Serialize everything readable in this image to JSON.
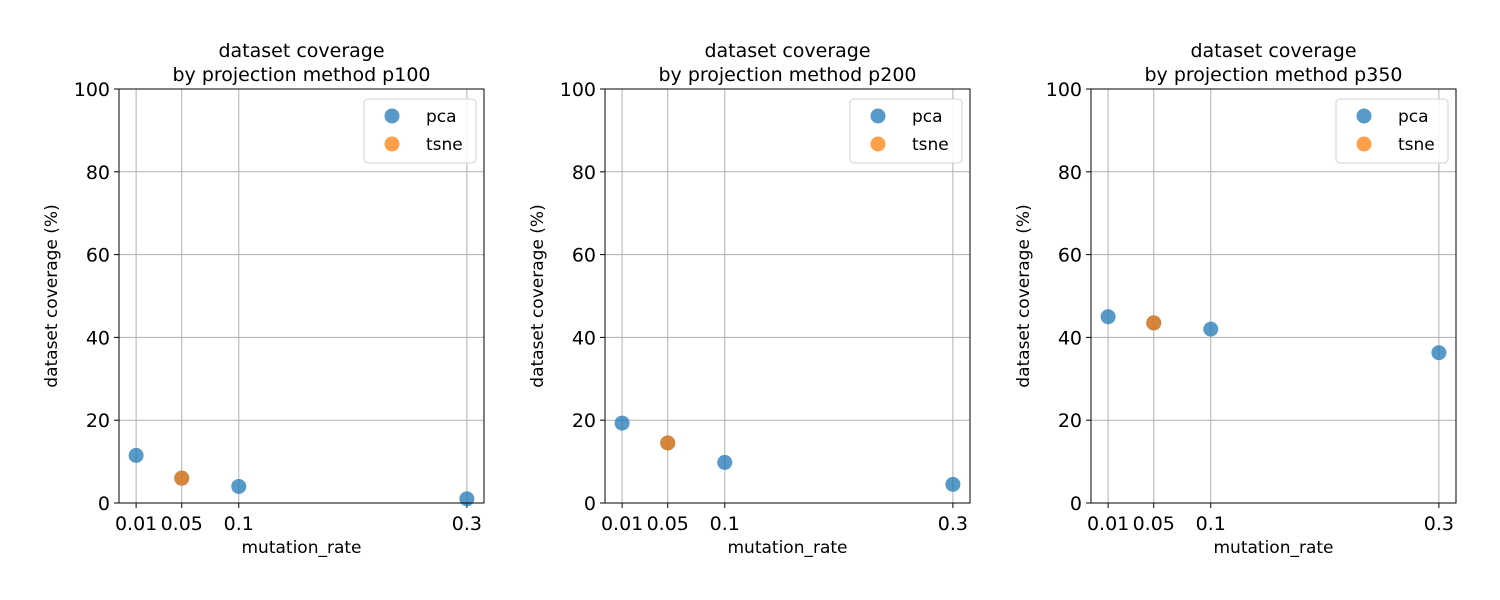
{
  "colors": {
    "pca": "#1f77b4",
    "tsne": "#ff7f0e"
  },
  "chart_data": [
    {
      "type": "scatter",
      "title": [
        "dataset coverage",
        "by projection method p100"
      ],
      "xlabel": "mutation_rate",
      "ylabel": "dataset coverage (%)",
      "xticks": [
        0.01,
        0.05,
        0.1,
        0.3
      ],
      "xtick_labels": [
        "0.01",
        "0.05",
        "0.1",
        "0.3"
      ],
      "yticks": [
        0,
        20,
        40,
        60,
        80,
        100
      ],
      "ylim": [
        0,
        100
      ],
      "xlim": [
        -0.005,
        0.315
      ],
      "grid": true,
      "legend_position": "top-right",
      "series": [
        {
          "name": "pca",
          "color": "#1f77b4",
          "points": [
            {
              "x": 0.01,
              "y": 11.5
            },
            {
              "x": 0.05,
              "y": 6.0
            },
            {
              "x": 0.1,
              "y": 4.0
            },
            {
              "x": 0.3,
              "y": 1.0
            }
          ]
        },
        {
          "name": "tsne",
          "color": "#ff7f0e",
          "points": [
            {
              "x": 0.05,
              "y": 6.0
            }
          ]
        }
      ]
    },
    {
      "type": "scatter",
      "title": [
        "dataset coverage",
        "by projection method p200"
      ],
      "xlabel": "mutation_rate",
      "ylabel": "dataset coverage (%)",
      "xticks": [
        0.01,
        0.05,
        0.1,
        0.3
      ],
      "xtick_labels": [
        "0.01",
        "0.05",
        "0.1",
        "0.3"
      ],
      "yticks": [
        0,
        20,
        40,
        60,
        80,
        100
      ],
      "ylim": [
        0,
        100
      ],
      "xlim": [
        -0.005,
        0.315
      ],
      "grid": true,
      "legend_position": "top-right",
      "series": [
        {
          "name": "pca",
          "color": "#1f77b4",
          "points": [
            {
              "x": 0.01,
              "y": 19.3
            },
            {
              "x": 0.05,
              "y": 14.5
            },
            {
              "x": 0.1,
              "y": 9.8
            },
            {
              "x": 0.3,
              "y": 4.5
            }
          ]
        },
        {
          "name": "tsne",
          "color": "#ff7f0e",
          "points": [
            {
              "x": 0.05,
              "y": 14.5
            }
          ]
        }
      ]
    },
    {
      "type": "scatter",
      "title": [
        "dataset coverage",
        "by projection method p350"
      ],
      "xlabel": "mutation_rate",
      "ylabel": "dataset coverage (%)",
      "xticks": [
        0.01,
        0.05,
        0.1,
        0.3
      ],
      "xtick_labels": [
        "0.01",
        "0.05",
        "0.1",
        "0.3"
      ],
      "yticks": [
        0,
        20,
        40,
        60,
        80,
        100
      ],
      "ylim": [
        0,
        100
      ],
      "xlim": [
        -0.005,
        0.315
      ],
      "grid": true,
      "legend_position": "top-right",
      "series": [
        {
          "name": "pca",
          "color": "#1f77b4",
          "points": [
            {
              "x": 0.01,
              "y": 45.0
            },
            {
              "x": 0.05,
              "y": 43.5
            },
            {
              "x": 0.1,
              "y": 42.0
            },
            {
              "x": 0.3,
              "y": 36.3
            }
          ]
        },
        {
          "name": "tsne",
          "color": "#ff7f0e",
          "points": [
            {
              "x": 0.05,
              "y": 43.5
            }
          ]
        }
      ]
    }
  ]
}
